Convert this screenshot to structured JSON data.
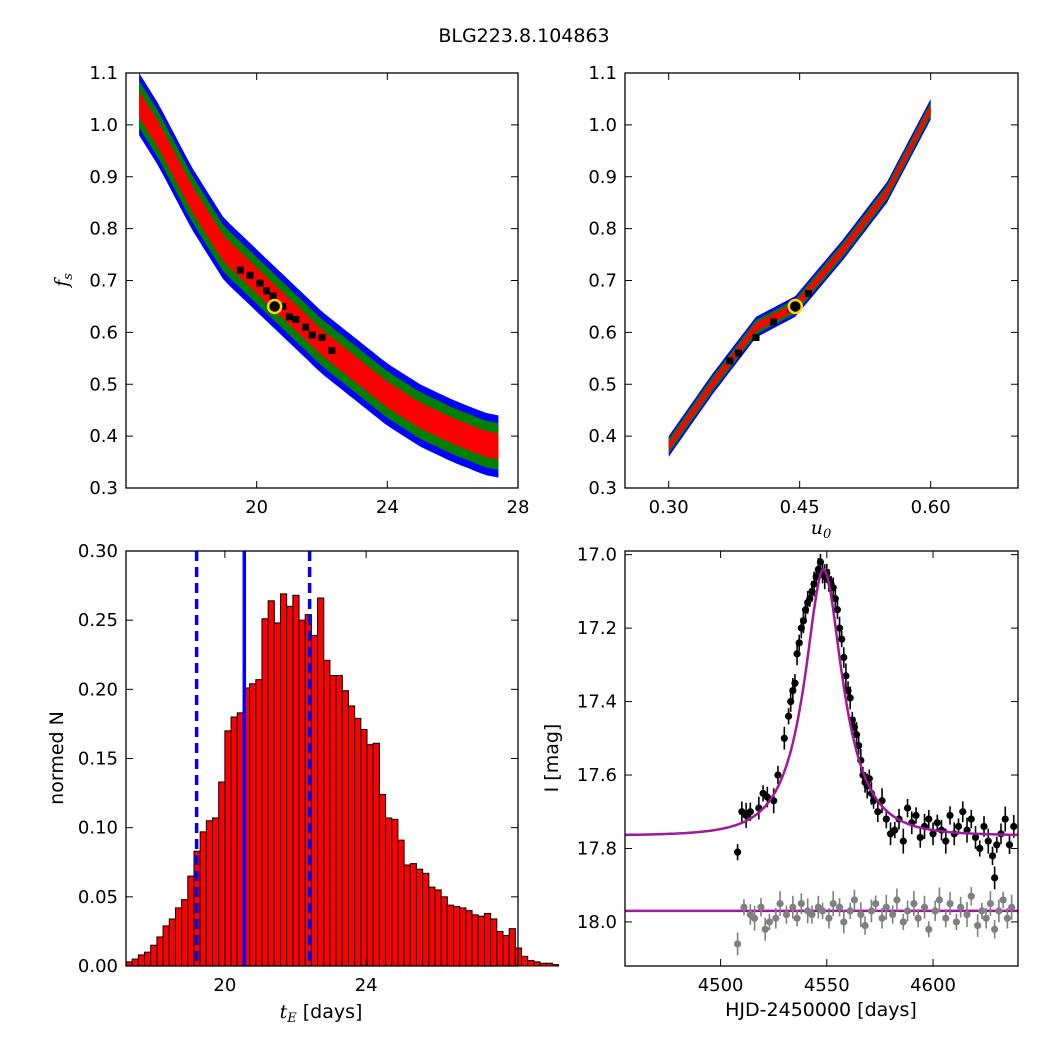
{
  "figure": {
    "title": "BLG223.8.104863"
  },
  "chart_data": [
    {
      "id": "fs_vs_tE",
      "type": "scatter",
      "title": "",
      "xlabel": "",
      "ylabel": "f_s",
      "ylabel_main": "f",
      "ylabel_sub": "s",
      "xlim": [
        16,
        28
      ],
      "ylim": [
        0.3,
        1.1
      ],
      "xticks": [
        20,
        24,
        28
      ],
      "yticks": [
        0.3,
        0.4,
        0.5,
        0.6,
        0.7,
        0.8,
        0.9,
        1.0,
        1.1
      ],
      "xtick_labels": [
        "20",
        "24",
        "28"
      ],
      "ytick_labels": [
        "0.3",
        "0.4",
        "0.5",
        "0.6",
        "0.7",
        "0.8",
        "0.9",
        "1.0",
        "1.1"
      ],
      "grid": false,
      "band_centerline": [
        [
          16.4,
          1.04
        ],
        [
          17.0,
          0.98
        ],
        [
          18.0,
          0.86
        ],
        [
          19.0,
          0.76
        ],
        [
          20.0,
          0.7
        ],
        [
          21.0,
          0.64
        ],
        [
          22.0,
          0.58
        ],
        [
          23.0,
          0.53
        ],
        [
          24.0,
          0.48
        ],
        [
          25.0,
          0.44
        ],
        [
          26.0,
          0.41
        ],
        [
          27.0,
          0.385
        ],
        [
          27.4,
          0.38
        ]
      ],
      "contours": [
        {
          "level": "blue",
          "color": "#0000ff",
          "halfwidth": 0.06
        },
        {
          "level": "green",
          "color": "#008000",
          "halfwidth": 0.045
        },
        {
          "level": "red",
          "color": "#ff0000",
          "halfwidth": 0.025
        }
      ],
      "black_points": [
        [
          19.5,
          0.72
        ],
        [
          19.8,
          0.71
        ],
        [
          20.1,
          0.695
        ],
        [
          20.3,
          0.68
        ],
        [
          20.5,
          0.67
        ],
        [
          20.8,
          0.65
        ],
        [
          21.0,
          0.63
        ],
        [
          21.2,
          0.625
        ],
        [
          21.5,
          0.61
        ],
        [
          21.7,
          0.595
        ],
        [
          22.0,
          0.59
        ],
        [
          22.3,
          0.565
        ]
      ],
      "best_fit": {
        "x": 20.55,
        "y": 0.65,
        "edge_color": "#ffd700",
        "face_color": "#000000"
      }
    },
    {
      "id": "fs_vs_u0",
      "type": "scatter",
      "title": "",
      "xlabel": "u_0",
      "xlabel_main": "u",
      "xlabel_sub": "0",
      "ylabel": "",
      "xlim": [
        0.25,
        0.7
      ],
      "ylim": [
        0.3,
        1.1
      ],
      "xticks": [
        0.3,
        0.45,
        0.6
      ],
      "yticks": [
        0.3,
        0.4,
        0.5,
        0.6,
        0.7,
        0.8,
        0.9,
        1.0,
        1.1
      ],
      "xtick_labels": [
        "0.30",
        "0.45",
        "0.60"
      ],
      "ytick_labels": [
        "0.3",
        "0.4",
        "0.5",
        "0.6",
        "0.7",
        "0.8",
        "0.9",
        "1.0",
        "1.1"
      ],
      "grid": false,
      "band_centerline": [
        [
          0.3,
          0.38
        ],
        [
          0.35,
          0.5
        ],
        [
          0.4,
          0.61
        ],
        [
          0.445,
          0.65
        ],
        [
          0.5,
          0.76
        ],
        [
          0.55,
          0.87
        ],
        [
          0.6,
          1.03
        ]
      ],
      "contours": [
        {
          "level": "blue",
          "color": "#0000ff",
          "halfwidth": 0.02
        },
        {
          "level": "green",
          "color": "#008000",
          "halfwidth": 0.014
        },
        {
          "level": "red",
          "color": "#ff0000",
          "halfwidth": 0.008
        }
      ],
      "black_points": [
        [
          0.37,
          0.545
        ],
        [
          0.38,
          0.56
        ],
        [
          0.4,
          0.59
        ],
        [
          0.42,
          0.62
        ],
        [
          0.44,
          0.645
        ],
        [
          0.46,
          0.675
        ]
      ],
      "best_fit": {
        "x": 0.445,
        "y": 0.65,
        "edge_color": "#ffd700",
        "face_color": "#000000"
      }
    },
    {
      "id": "tE_histogram",
      "type": "bar",
      "title": "",
      "xlabel": "t_E [days]",
      "xlabel_main": "t",
      "xlabel_sub": "E",
      "xlabel_suffix": " [days]",
      "ylabel": "normed N",
      "xlim": [
        17.2,
        28.3
      ],
      "ylim": [
        0.0,
        0.3
      ],
      "xticks": [
        20,
        24
      ],
      "yticks": [
        0.0,
        0.05,
        0.1,
        0.15,
        0.2,
        0.25,
        0.3
      ],
      "xtick_labels": [
        "20",
        "24"
      ],
      "ytick_labels": [
        "0.00",
        "0.05",
        "0.10",
        "0.15",
        "0.20",
        "0.25",
        "0.30"
      ],
      "grid": false,
      "bar_color": "#ff0000",
      "bin_start": 17.2,
      "bin_width": 0.175,
      "values": [
        0.003,
        0.005,
        0.008,
        0.01,
        0.015,
        0.021,
        0.029,
        0.034,
        0.042,
        0.048,
        0.065,
        0.083,
        0.097,
        0.105,
        0.107,
        0.133,
        0.17,
        0.18,
        0.183,
        0.201,
        0.204,
        0.207,
        0.251,
        0.264,
        0.248,
        0.269,
        0.26,
        0.268,
        0.25,
        0.254,
        0.239,
        0.266,
        0.221,
        0.21,
        0.21,
        0.199,
        0.188,
        0.179,
        0.171,
        0.16,
        0.161,
        0.124,
        0.107,
        0.106,
        0.091,
        0.073,
        0.074,
        0.07,
        0.067,
        0.057,
        0.055,
        0.05,
        0.044,
        0.043,
        0.042,
        0.04,
        0.037,
        0.036,
        0.038,
        0.034,
        0.025,
        0.022,
        0.027,
        0.013,
        0.007,
        0.004,
        0.003,
        0.002,
        0.002,
        0.001
      ],
      "vlines": [
        {
          "x": 20.55,
          "style": "solid",
          "color": "#0000ff"
        },
        {
          "x": 19.2,
          "style": "dashed",
          "color": "#0000ff"
        },
        {
          "x": 22.4,
          "style": "dashed",
          "color": "#0000ff"
        }
      ]
    },
    {
      "id": "lightcurve",
      "type": "scatter",
      "title": "",
      "xlabel": "HJD-2450000 [days]",
      "ylabel": "I [mag]",
      "xlim": [
        4455,
        4640
      ],
      "ylim": [
        18.12,
        16.99
      ],
      "y_inverted": true,
      "xticks": [
        4500,
        4550,
        4600
      ],
      "yticks": [
        17.0,
        17.2,
        17.4,
        17.6,
        17.8,
        18.0
      ],
      "xtick_labels": [
        "4500",
        "4550",
        "4600"
      ],
      "ytick_labels": [
        "17.0",
        "17.2",
        "17.4",
        "17.6",
        "17.8",
        "18.0"
      ],
      "grid": false,
      "model": {
        "t0": 4548.5,
        "u0": 0.445,
        "tE": 20.55,
        "base_mag": 17.765,
        "peak_mag": 17.04,
        "color": "#a0189f"
      },
      "comparison_model_mag": 17.97,
      "series": [
        {
          "color": "#000000",
          "points": [
            [
              4508,
              17.81
            ],
            [
              4510,
              17.7
            ],
            [
              4512,
              17.71
            ],
            [
              4514,
              17.7
            ],
            [
              4518,
              17.69
            ],
            [
              4520,
              17.65
            ],
            [
              4522,
              17.66
            ],
            [
              4525,
              17.67
            ],
            [
              4527,
              17.6
            ],
            [
              4530,
              17.5
            ],
            [
              4532,
              17.44
            ],
            [
              4533,
              17.4
            ],
            [
              4534,
              17.37
            ],
            [
              4535,
              17.35
            ],
            [
              4536,
              17.27
            ],
            [
              4537,
              17.24
            ],
            [
              4538,
              17.2
            ],
            [
              4539,
              17.18
            ],
            [
              4540,
              17.15
            ],
            [
              4541,
              17.13
            ],
            [
              4542,
              17.12
            ],
            [
              4543,
              17.1
            ],
            [
              4544,
              17.08
            ],
            [
              4545,
              17.06
            ],
            [
              4546,
              17.04
            ],
            [
              4547,
              17.02
            ],
            [
              4548,
              17.05
            ],
            [
              4549,
              17.06
            ],
            [
              4550,
              17.05
            ],
            [
              4551,
              17.07
            ],
            [
              4552,
              17.08
            ],
            [
              4553,
              17.09
            ],
            [
              4554,
              17.12
            ],
            [
              4555,
              17.15
            ],
            [
              4556,
              17.2
            ],
            [
              4557,
              17.23
            ],
            [
              4558,
              17.28
            ],
            [
              4559,
              17.33
            ],
            [
              4560,
              17.37
            ],
            [
              4561,
              17.39
            ],
            [
              4562,
              17.45
            ],
            [
              4563,
              17.47
            ],
            [
              4564,
              17.49
            ],
            [
              4565,
              17.52
            ],
            [
              4566,
              17.56
            ],
            [
              4567,
              17.6
            ],
            [
              4568,
              17.62
            ],
            [
              4569,
              17.63
            ],
            [
              4570,
              17.61
            ],
            [
              4571,
              17.65
            ],
            [
              4572,
              17.67
            ],
            [
              4574,
              17.7
            ],
            [
              4576,
              17.67
            ],
            [
              4578,
              17.72
            ],
            [
              4580,
              17.76
            ],
            [
              4582,
              17.75
            ],
            [
              4584,
              17.72
            ],
            [
              4586,
              17.78
            ],
            [
              4588,
              17.69
            ],
            [
              4590,
              17.73
            ],
            [
              4592,
              17.71
            ],
            [
              4594,
              17.77
            ],
            [
              4596,
              17.74
            ],
            [
              4598,
              17.72
            ],
            [
              4600,
              17.76
            ],
            [
              4602,
              17.73
            ],
            [
              4604,
              17.75
            ],
            [
              4606,
              17.78
            ],
            [
              4608,
              17.71
            ],
            [
              4610,
              17.76
            ],
            [
              4612,
              17.74
            ],
            [
              4614,
              17.7
            ],
            [
              4616,
              17.75
            ],
            [
              4618,
              17.72
            ],
            [
              4620,
              17.77
            ],
            [
              4622,
              17.8
            ],
            [
              4624,
              17.74
            ],
            [
              4626,
              17.78
            ],
            [
              4628,
              17.82
            ],
            [
              4629,
              17.88
            ],
            [
              4630,
              17.79
            ],
            [
              4632,
              17.76
            ],
            [
              4634,
              17.72
            ],
            [
              4636,
              17.79
            ],
            [
              4638,
              17.74
            ]
          ]
        },
        {
          "color": "#808080",
          "points": [
            [
              4508,
              18.06
            ],
            [
              4511,
              17.96
            ],
            [
              4514,
              17.98
            ],
            [
              4516,
              17.99
            ],
            [
              4519,
              17.96
            ],
            [
              4521,
              18.02
            ],
            [
              4523,
              18.0
            ],
            [
              4526,
              17.99
            ],
            [
              4528,
              17.95
            ],
            [
              4531,
              17.98
            ],
            [
              4534,
              17.96
            ],
            [
              4536,
              17.99
            ],
            [
              4538,
              17.95
            ],
            [
              4541,
              17.97
            ],
            [
              4543,
              17.98
            ],
            [
              4546,
              17.96
            ],
            [
              4548,
              17.97
            ],
            [
              4551,
              17.99
            ],
            [
              4553,
              17.95
            ],
            [
              4556,
              17.96
            ],
            [
              4558,
              18.0
            ],
            [
              4561,
              17.97
            ],
            [
              4563,
              17.94
            ],
            [
              4566,
              17.98
            ],
            [
              4568,
              18.01
            ],
            [
              4571,
              17.97
            ],
            [
              4573,
              17.95
            ],
            [
              4576,
              17.99
            ],
            [
              4578,
              17.96
            ],
            [
              4581,
              17.98
            ],
            [
              4583,
              17.94
            ],
            [
              4586,
              18.0
            ],
            [
              4588,
              17.97
            ],
            [
              4591,
              17.95
            ],
            [
              4593,
              17.99
            ],
            [
              4596,
              17.96
            ],
            [
              4598,
              18.02
            ],
            [
              4601,
              17.97
            ],
            [
              4603,
              17.94
            ],
            [
              4606,
              17.99
            ],
            [
              4608,
              17.95
            ],
            [
              4611,
              18.0
            ],
            [
              4613,
              17.96
            ],
            [
              4616,
              17.98
            ],
            [
              4618,
              17.93
            ],
            [
              4621,
              18.01
            ],
            [
              4623,
              17.97
            ],
            [
              4625,
              17.99
            ],
            [
              4627,
              17.95
            ],
            [
              4629,
              18.02
            ],
            [
              4631,
              17.97
            ],
            [
              4633,
              17.94
            ],
            [
              4635,
              17.99
            ],
            [
              4637,
              17.96
            ]
          ]
        }
      ]
    }
  ]
}
